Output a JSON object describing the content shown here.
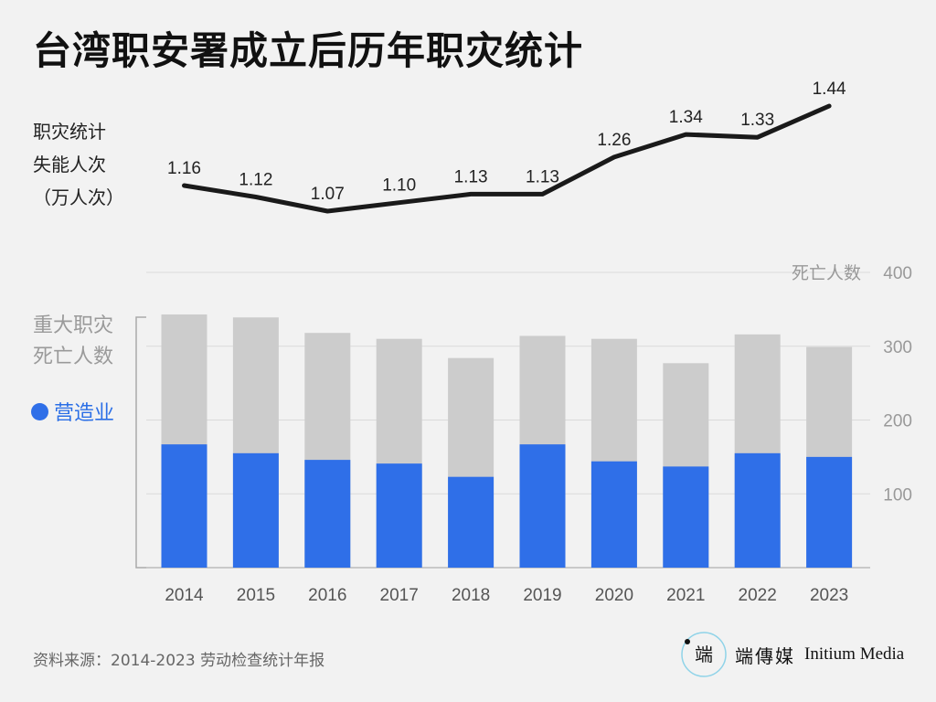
{
  "title": "台湾职安署成立后历年职灾统计",
  "line_label": [
    "职灾统计",
    "失能人次",
    "（万人次）"
  ],
  "bar_label": [
    "重大职灾",
    "死亡人数"
  ],
  "legend": {
    "label": "营造业",
    "color": "#2f6fe8"
  },
  "source": "资料来源：2014-2023 劳动检查统计年报",
  "brand": {
    "cn": "端傳媒",
    "en": "Initium Media",
    "mark": "端"
  },
  "chart_data": {
    "type": "bar+line",
    "categories": [
      "2014",
      "2015",
      "2016",
      "2017",
      "2018",
      "2019",
      "2020",
      "2021",
      "2022",
      "2023"
    ],
    "line": {
      "values": [
        1.16,
        1.12,
        1.07,
        1.1,
        1.13,
        1.13,
        1.26,
        1.34,
        1.33,
        1.44
      ],
      "labels": [
        "1.16",
        "1.12",
        "1.07",
        "1.10",
        "1.13",
        "1.13",
        "1.26",
        "1.34",
        "1.33",
        "1.44"
      ],
      "color": "#1a1a1a"
    },
    "bars": {
      "total": [
        343,
        339,
        318,
        310,
        284,
        314,
        310,
        277,
        316,
        299
      ],
      "construction": [
        167,
        155,
        146,
        141,
        123,
        167,
        144,
        137,
        155,
        150
      ],
      "total_color": "#cccccc",
      "construction_color": "#2f6fe8"
    },
    "y_axis": {
      "ylim": [
        0,
        400
      ],
      "ticks": [
        100,
        200,
        300,
        400
      ],
      "tick_labels": [
        "100",
        "200",
        "300",
        "400"
      ],
      "title": "死亡人数",
      "position": "right"
    },
    "grid": true
  }
}
